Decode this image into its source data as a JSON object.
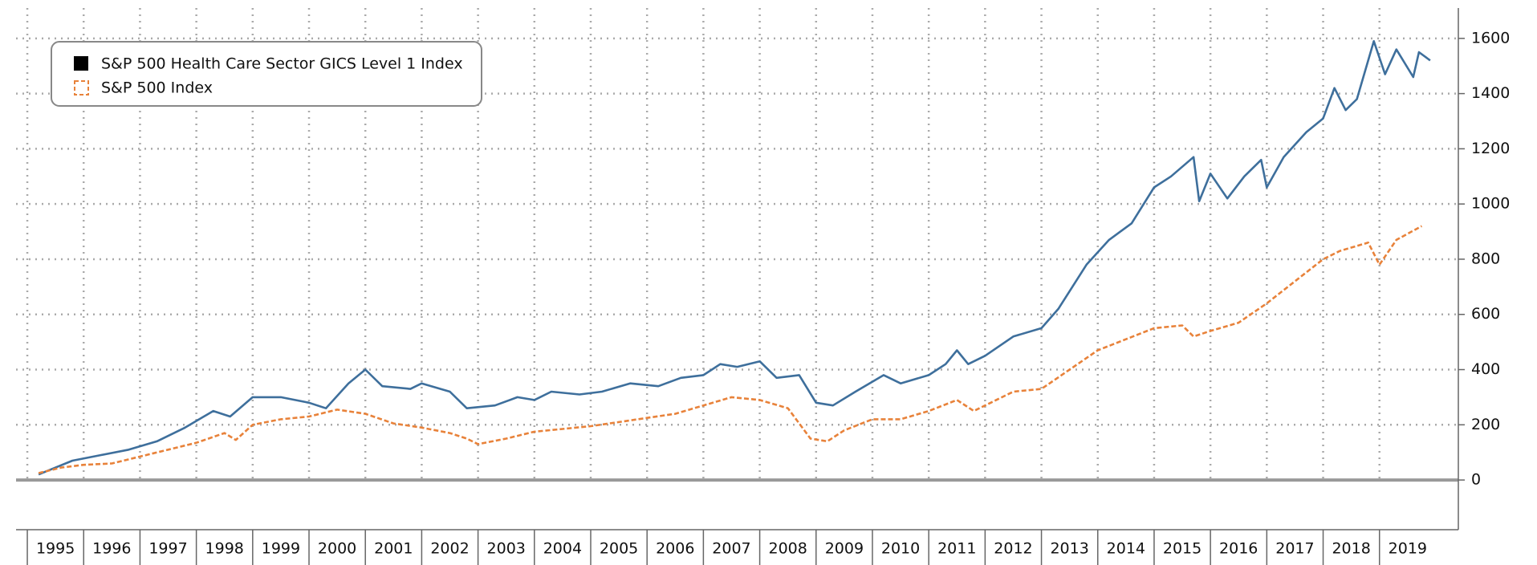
{
  "chart_data": {
    "type": "line",
    "xlim": [
      1994.8,
      2020.4
    ],
    "xticks": [
      {
        "value": 1995,
        "label": "1995"
      },
      {
        "value": 1996,
        "label": "1996"
      },
      {
        "value": 1997,
        "label": "1997"
      },
      {
        "value": 1998,
        "label": "1998"
      },
      {
        "value": 1999,
        "label": "1999"
      },
      {
        "value": 2000,
        "label": "2000"
      },
      {
        "value": 2001,
        "label": "2001"
      },
      {
        "value": 2002,
        "label": "2002"
      },
      {
        "value": 2003,
        "label": "2003"
      },
      {
        "value": 2004,
        "label": "2004"
      },
      {
        "value": 2005,
        "label": "2005"
      },
      {
        "value": 2006,
        "label": "2006"
      },
      {
        "value": 2007,
        "label": "2007"
      },
      {
        "value": 2008,
        "label": "2008"
      },
      {
        "value": 2009,
        "label": "2009"
      },
      {
        "value": 2010,
        "label": "2010"
      },
      {
        "value": 2011,
        "label": "2011"
      },
      {
        "value": 2012,
        "label": "2012"
      },
      {
        "value": 2013,
        "label": "2013"
      },
      {
        "value": 2014,
        "label": "2014"
      },
      {
        "value": 2015,
        "label": "2015"
      },
      {
        "value": 2016,
        "label": "2016"
      },
      {
        "value": 2017,
        "label": "2017"
      },
      {
        "value": 2018,
        "label": "2018"
      },
      {
        "value": 2019,
        "label": "2019"
      }
    ],
    "ylim": [
      -180,
      1710
    ],
    "yticks": [
      0,
      200,
      400,
      600,
      800,
      1000,
      1200,
      1400,
      1600
    ],
    "grid": true,
    "legend": "upper left",
    "series": [
      {
        "name": "S&P 500 Health Care Sector GICS Level 1 Index",
        "color": "#3e6f9c",
        "dashed": false,
        "x": [
          1995.2,
          1995.8,
          1996.3,
          1996.8,
          1997.3,
          1997.8,
          1998.3,
          1998.6,
          1999.0,
          1999.5,
          2000.0,
          2000.3,
          2000.7,
          2001.0,
          2001.3,
          2001.8,
          2002.0,
          2002.5,
          2002.8,
          2003.3,
          2003.7,
          2004.0,
          2004.3,
          2004.8,
          2005.2,
          2005.7,
          2006.2,
          2006.6,
          2007.0,
          2007.3,
          2007.6,
          2008.0,
          2008.3,
          2008.7,
          2009.0,
          2009.3,
          2009.7,
          2010.2,
          2010.5,
          2011.0,
          2011.3,
          2011.5,
          2011.7,
          2012.0,
          2012.5,
          2013.0,
          2013.3,
          2013.8,
          2014.2,
          2014.6,
          2015.0,
          2015.3,
          2015.7,
          2015.8,
          2016.0,
          2016.3,
          2016.6,
          2016.9,
          2017.0,
          2017.3,
          2017.7,
          2018.0,
          2018.2,
          2018.4,
          2018.6,
          2018.9,
          2019.1,
          2019.3,
          2019.6,
          2019.7,
          2019.9
        ],
        "values": [
          20,
          70,
          90,
          110,
          140,
          190,
          250,
          230,
          300,
          300,
          280,
          260,
          350,
          400,
          340,
          330,
          350,
          320,
          260,
          270,
          300,
          290,
          320,
          310,
          320,
          350,
          340,
          370,
          380,
          420,
          410,
          430,
          370,
          380,
          280,
          270,
          320,
          380,
          350,
          380,
          420,
          470,
          420,
          450,
          520,
          550,
          620,
          780,
          870,
          930,
          1060,
          1100,
          1170,
          1010,
          1110,
          1020,
          1100,
          1160,
          1060,
          1170,
          1260,
          1310,
          1420,
          1340,
          1380,
          1590,
          1470,
          1560,
          1460,
          1550,
          1520
        ]
      },
      {
        "name": "S&P 500 Index",
        "color": "#e8823a",
        "dashed": true,
        "x": [
          1995.2,
          1995.6,
          1996.0,
          1996.5,
          1997.0,
          1997.5,
          1998.0,
          1998.5,
          1998.7,
          1999.0,
          1999.5,
          2000.0,
          2000.5,
          2001.0,
          2001.5,
          2002.0,
          2002.5,
          2002.8,
          2003.0,
          2003.5,
          2004.0,
          2004.5,
          2005.0,
          2005.5,
          2006.0,
          2006.5,
          2007.0,
          2007.5,
          2008.0,
          2008.5,
          2008.9,
          2009.2,
          2009.5,
          2010.0,
          2010.5,
          2011.0,
          2011.5,
          2011.8,
          2012.0,
          2012.5,
          2013.0,
          2013.5,
          2014.0,
          2014.5,
          2015.0,
          2015.5,
          2015.7,
          2016.0,
          2016.5,
          2017.0,
          2017.5,
          2018.0,
          2018.3,
          2018.8,
          2019.0,
          2019.3,
          2019.75
        ],
        "values": [
          25,
          45,
          55,
          60,
          85,
          110,
          135,
          170,
          145,
          200,
          220,
          230,
          255,
          240,
          205,
          190,
          170,
          150,
          130,
          150,
          175,
          185,
          195,
          210,
          225,
          240,
          270,
          300,
          290,
          260,
          150,
          140,
          180,
          220,
          220,
          250,
          290,
          250,
          270,
          320,
          330,
          400,
          470,
          510,
          550,
          560,
          520,
          540,
          570,
          640,
          720,
          800,
          830,
          860,
          780,
          870,
          920
        ]
      }
    ]
  }
}
